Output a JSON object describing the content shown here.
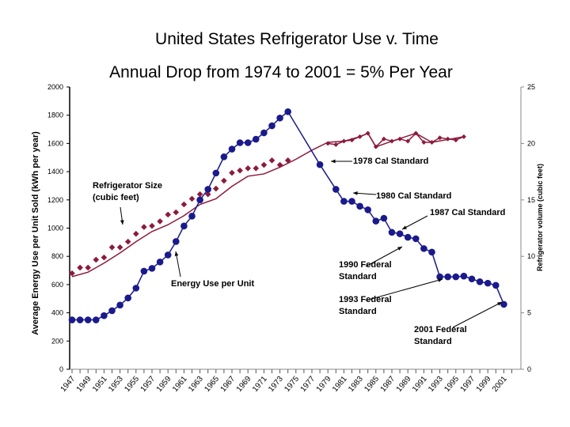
{
  "chart_data": {
    "type": "line",
    "title": "United States Refrigerator Use v. Time",
    "subtitle": "Annual Drop from 1974 to 2001 = 5% Per Year",
    "ylabel": "Average Energy Use per Unit Sold (kWh per year)",
    "y2label": "Refrigerator volume (cubic feet)",
    "ylim": [
      0,
      2000
    ],
    "y2lim": [
      0,
      25
    ],
    "yticks": [
      0,
      200,
      400,
      600,
      800,
      1000,
      1200,
      1400,
      1600,
      1800,
      2000
    ],
    "y2ticks": [
      0,
      5,
      10,
      15,
      20,
      25
    ],
    "xlim": [
      1947,
      2002
    ],
    "xticks": [
      "1947",
      "1949",
      "1951",
      "1953",
      "1955",
      "1957",
      "1959",
      "1961",
      "1963",
      "1965",
      "1967",
      "1969",
      "1971",
      "1973",
      "1975",
      "1977",
      "1979",
      "1981",
      "1983",
      "1985",
      "1987",
      "1989",
      "1991",
      "1993",
      "1995",
      "1997",
      "1999",
      "2001"
    ],
    "grid": false,
    "energy": {
      "color": "#1a1a8c",
      "axis": "left",
      "points": [
        [
          1947,
          350
        ],
        [
          1948,
          350
        ],
        [
          1949,
          350
        ],
        [
          1950,
          350
        ],
        [
          1951,
          380
        ],
        [
          1952,
          415
        ],
        [
          1953,
          455
        ],
        [
          1954,
          505
        ],
        [
          1955,
          575
        ],
        [
          1956,
          695
        ],
        [
          1957,
          715
        ],
        [
          1958,
          760
        ],
        [
          1959,
          810
        ],
        [
          1960,
          905
        ],
        [
          1961,
          1015
        ],
        [
          1962,
          1085
        ],
        [
          1963,
          1200
        ],
        [
          1964,
          1275
        ],
        [
          1965,
          1390
        ],
        [
          1966,
          1505
        ],
        [
          1967,
          1560
        ],
        [
          1968,
          1605
        ],
        [
          1969,
          1605
        ],
        [
          1970,
          1630
        ],
        [
          1971,
          1675
        ],
        [
          1972,
          1725
        ],
        [
          1973,
          1780
        ],
        [
          1974,
          1825
        ],
        [
          1978,
          1450
        ],
        [
          1980,
          1275
        ],
        [
          1981,
          1190
        ],
        [
          1982,
          1190
        ],
        [
          1983,
          1155
        ],
        [
          1984,
          1130
        ],
        [
          1985,
          1050
        ],
        [
          1986,
          1070
        ],
        [
          1987,
          970
        ],
        [
          1988,
          960
        ],
        [
          1989,
          935
        ],
        [
          1990,
          925
        ],
        [
          1991,
          855
        ],
        [
          1992,
          830
        ],
        [
          1993,
          655
        ],
        [
          1994,
          655
        ],
        [
          1995,
          655
        ],
        [
          1996,
          660
        ],
        [
          1997,
          640
        ],
        [
          1998,
          620
        ],
        [
          1999,
          610
        ],
        [
          2000,
          595
        ],
        [
          2001,
          460
        ]
      ]
    },
    "size": {
      "color": "#8c1a3c",
      "axis": "right",
      "points": [
        [
          1947,
          8.5
        ],
        [
          1948,
          9.0
        ],
        [
          1949,
          9.0
        ],
        [
          1950,
          9.7
        ],
        [
          1951,
          9.9
        ],
        [
          1952,
          10.8
        ],
        [
          1953,
          10.8
        ],
        [
          1954,
          11.3
        ],
        [
          1955,
          12.0
        ],
        [
          1956,
          12.6
        ],
        [
          1957,
          12.7
        ],
        [
          1958,
          13.1
        ],
        [
          1959,
          13.7
        ],
        [
          1960,
          13.9
        ],
        [
          1961,
          14.6
        ],
        [
          1962,
          15.1
        ],
        [
          1963,
          15.5
        ],
        [
          1964,
          15.5
        ],
        [
          1965,
          16.0
        ],
        [
          1966,
          16.7
        ],
        [
          1967,
          17.4
        ],
        [
          1968,
          17.6
        ],
        [
          1969,
          17.8
        ],
        [
          1970,
          17.8
        ],
        [
          1971,
          18.1
        ],
        [
          1972,
          18.5
        ],
        [
          1973,
          18.1
        ],
        [
          1974,
          18.5
        ],
        [
          1979,
          20.0
        ],
        [
          1980,
          19.9
        ],
        [
          1981,
          20.2
        ],
        [
          1982,
          20.3
        ],
        [
          1983,
          20.6
        ],
        [
          1984,
          20.9
        ],
        [
          1985,
          19.7
        ],
        [
          1986,
          20.4
        ],
        [
          1987,
          20.2
        ],
        [
          1988,
          20.4
        ],
        [
          1989,
          20.2
        ],
        [
          1990,
          20.9
        ],
        [
          1991,
          20.1
        ],
        [
          1992,
          20.1
        ],
        [
          1993,
          20.5
        ],
        [
          1994,
          20.4
        ],
        [
          1995,
          20.3
        ],
        [
          1996,
          20.6
        ]
      ],
      "trend": [
        [
          1947,
          8.2
        ],
        [
          1949,
          8.6
        ],
        [
          1951,
          9.4
        ],
        [
          1953,
          10.3
        ],
        [
          1955,
          11.3
        ],
        [
          1957,
          12.2
        ],
        [
          1959,
          12.8
        ],
        [
          1961,
          13.6
        ],
        [
          1963,
          14.6
        ],
        [
          1965,
          15.1
        ],
        [
          1967,
          16.2
        ],
        [
          1969,
          17.1
        ],
        [
          1971,
          17.3
        ],
        [
          1973,
          17.9
        ],
        [
          1975,
          18.6
        ],
        [
          1977,
          19.4
        ],
        [
          1979,
          20.1
        ],
        [
          1981,
          20.2
        ],
        [
          1983,
          20.6
        ],
        [
          1984,
          20.9
        ],
        [
          1985,
          19.7
        ],
        [
          1987,
          20.2
        ],
        [
          1990,
          20.9
        ],
        [
          1992,
          20.1
        ],
        [
          1996,
          20.6
        ]
      ]
    },
    "annotations": [
      {
        "text": "Refrigerator Size (cubic feet)",
        "lines": [
          "Refrigerator Size",
          "(cubic feet)"
        ]
      },
      {
        "text": "Energy Use per Unit",
        "lines": [
          "Energy Use per Unit"
        ]
      },
      {
        "text": "1978 Cal Standard",
        "lines": [
          "1978 Cal Standard"
        ]
      },
      {
        "text": "1980 Cal Standard",
        "lines": [
          "1980 Cal Standard"
        ]
      },
      {
        "text": "1987 Cal Standard",
        "lines": [
          "1987 Cal Standard"
        ]
      },
      {
        "text": "1990 Federal Standard",
        "lines": [
          "1990 Federal",
          "Standard"
        ]
      },
      {
        "text": "1993 Federal Standard",
        "lines": [
          "1993 Federal",
          "Standard"
        ]
      },
      {
        "text": "2001 Federal Standard",
        "lines": [
          "2001 Federal",
          "Standard"
        ]
      }
    ]
  }
}
